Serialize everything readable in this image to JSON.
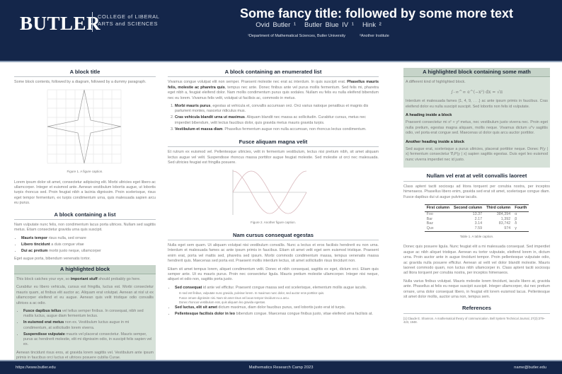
{
  "header": {
    "logo": "BUTLER",
    "college_line1": "COLLEGE of LIBERAL",
    "college_line2": "ARTS and SCIENCES",
    "title": "Some fancy title: followed by some more text",
    "authors": [
      "Ovid Butler ¹",
      "Butler Blue IV ¹",
      "Hink ²"
    ],
    "affiliations": [
      "¹Department of Mathematical Sciences, Butler University",
      "²Another Institute"
    ]
  },
  "left": {
    "block1": {
      "title": "A block title",
      "intro": "Some block contents, followed by a diagram, followed by a dummy paragraph.",
      "caption": "Figure 1. A figure caption.",
      "para": "Lorem ipsum dolor sit amet, consectetur adipiscing elit. Morbi ultricies eget libero ac ullamcorper. Integer et euismod ante. Aenean vestibulum lobortis augue, ut lobortis turpis rhoncus sed. Proin feugiat nibh a lacinia dignissim. Proin scelerisque, risus eget tempor fermentum, ex turpis condimentum urna, quis malesuada sapien arcu eu purus."
    },
    "block2": {
      "title": "A block containing a list",
      "intro": "Nam vulputate nunc felis, non condimentum lacus porta ultrices. Nullam sed sagittis metus. Etiam consectetur gravida urna quis suscipit.",
      "items": [
        {
          "b": "Mauris tempor",
          "t": " risus nulla, sed ornare"
        },
        {
          "b": "Libero tincidunt",
          "t": " a duis congue vitae"
        },
        {
          "b": "Dui ac pretium",
          "t": " morbi justo neque, ullamcorper"
        }
      ],
      "outro": "Eget augue porta, bibendum venenatis tortor."
    },
    "block3": {
      "title": "A highlighted block",
      "p1a": "This block catches your eye, so ",
      "p1b": "important stuff",
      "p1c": " should probably go here.",
      "p2": "Curabitur eu libero vehicula, cursus est fringilla, luctus est. Morbi consectetur mauris quam, at finibus elit auctor ac. Aliquam erat volutpat. Aenean at nisl ut ex ullamcorper eleifend et eu augue. Aenean quis velit tristique odio convallis ultrices a ac odio.",
      "items": [
        {
          "b": "Fusce dapibus tellus",
          "t": " vel tellus semper finibus. In consequat, nibh sed mattis luctus, augue diam fermentum lectus."
        },
        {
          "b": "In euismod erat metus",
          "t": " non ex. Vestibulum luctus augue in mi condimentum, at sollicitudin lorem viverra."
        },
        {
          "b": "Suspendisse vulputate",
          "t": " mauris vel placerat consectetur. Mauris semper, purus ac hendrerit molestie, elit mi dignissim odio, in suscipit felis sapien vel ex."
        }
      ],
      "p3": "Aenean tincidunt risus eros, at gravida lorem sagittis vel. Vestibulum ante ipsum primis in faucibus orci luctus et ultrices posuere cubilia Curae."
    }
  },
  "middle": {
    "block1": {
      "title": "A block containing an enumerated list",
      "p_a": "Vivamus congue volutpat elit non semper. Praesent molestie nec erat ac interdum. In quis suscipit erat. ",
      "p_b": "Phasellus mauris felis, molestie ac pharetra quis",
      "p_c": ", tempus nec ante. Donec finibus ante vel purus mollis fermentum. Sed felis mi, pharetra eget nibh a, feugiat eleifend dolor. Nam mollis condimentum purus quis sodales. Nullam eu felis eu nulla eleifend bibendum nec eu lorem. Vivamus felis velit, volutpat ut facilisis ac, commodo in metus.",
      "items": [
        {
          "b": "Morbi mauris purus",
          "t": ", egestas at vehicula et, convallis accumsan orci. Orci varius natoque penatibus et magnis dis parturient montes, nascetur ridiculus mus."
        },
        {
          "b": "Cras vehicula blandit urna ut maximus",
          "t": ". Aliquam blandit nec massa ac sollicitudin. Curabitur cursus, metus nec imperdiet bibendum, velit lectus faucibus dolor, quis gravida metus mauris gravida turpis."
        },
        {
          "b": "Vestibulum et massa diam",
          "t": ". Phasellus fermentum augue non nulla accumsan, non rhoncus lectus condimentum."
        }
      ]
    },
    "block2": {
      "title": "Fusce aliquam magna velit",
      "para": "Et rutrum ex euismod vel. Pellentesque ultricies, velit in fermentum vestibulum, lectus nisi pretium nibh, sit amet aliquam lectus augue vel velit. Suspendisse rhoncus massa porttitor augue feugiat molestie. Sed molestie ut orci nec malesuada. Sed ultricies feugiat est fringilla posuere.",
      "caption": "Figure 2. Another figure caption."
    },
    "block3": {
      "title": "Nam cursus consequat egestas",
      "p1": "Nulla eget sem quam. Ut aliquam volutpat nisi vestibulum convallis. Nunc a lectus et eros facilisis hendrerit eu non urna. Interdum et malesuada fames ac ante ipsum primis in faucibus. Etiam sit amet velit eget sem euismod tristique. Praesent enim erat, porta vel mattis sed, pharetra sed ipsum. Morbi commodo condimentum massa, tempus venenatis massa hendrerit quis. Maecenas sed porta est. Praesent mollis interdum lectus, sit amet sollicitudin risus tincidunt non.",
      "p2": "Etiam sit amet tempus lorem, aliquet condimentum velit. Donec et nibh consequat, sagittis ex eget, dictum orci. Etiam quis semper ante. Ut eu mauris purus. Proin nec consectetur ligula. Mauris pretium molestie ullamcorper. Integer nisi neque, aliquet et odio non, sagittis porta justo.",
      "items": [
        {
          "b": "Sed consequat",
          "t": " id ante vel efficitur. Praesent congue massa sed est scelerisque, elementum mollis augue iaculis.",
          "sub": [
            "In sed est finibus, vulputate nunc gravida, pulvinar lorem. In maximus nunc dolor, sed auctor eros porttitor quis.",
            "Fusce ornare dignissim nisi. Nam sit amet risus vel lacus tempor tincidunt eu a arcu.",
            "Donec rhoncus vestibulum erat, quis aliquam leo gravida egestas."
          ]
        },
        {
          "b": "Sed luctus, elit sit amet",
          "t": " dictum maximus, diam dolor faucibus purus, sed lobortis justo erat id turpis."
        },
        {
          "b": "Pellentesque facilisis dolor in leo",
          "t": " bibendum congue. Maecenas congue finibus justo, vitae eleifend urna facilisis at."
        }
      ]
    }
  },
  "right": {
    "block1": {
      "title": "A highlighted block containing some math",
      "intro": "A different kind of highlighted block.",
      "equation": "∫₋∞^∞ e^(−x²) dx = √π",
      "p1": "Interdum et malesuada fames {1, 4, 9, . . .} ac ante ipsum primis in faucibus. Cras eleifend dolor eu nulla suscipit suscipit. Sed lobortis non felis id vulputate.",
      "h1": "A heading inside a block",
      "p2": "Praesent consectetur mi x² + y² metus, nec vestibulum justo viverra nec. Proin eget nulla pretium, egestas magna aliquam, mollis neque. Vivamus dictum uᵀv sagittis odio, vel porta erat congue sed. Maecenas ut dolor quis arcu auctor porttitor.",
      "h2": "Another heading inside a block",
      "p3": "Sed augue erat, scelerisque a purus ultricies, placerat porttitor neque. Donec P(y | x) fermentum consectetur ∇ₓP(y | x) sapien sagittis egestas. Duis eget leo euismod nunc viverra imperdiet nec id justo."
    },
    "block2": {
      "title": "Nullam vel erat at velit convallis laoreet",
      "intro": "Class aptent taciti sociosqu ad litora torquent per conubia nostra, per inceptos himenaeos. Phasellus libero enim, gravida sed erat sit amet, scelerisque congue diam. Fusce dapibus dui ut augue pulvinar iaculis.",
      "table": {
        "headers": [
          "First column",
          "Second column",
          "Third column",
          "Fourth"
        ],
        "rows": [
          [
            "Foo",
            "13.37",
            "384,394",
            "α"
          ],
          [
            "Bar",
            "2.17",
            "1,392",
            "β"
          ],
          [
            "Baz",
            "3.14",
            "83,742",
            "δ"
          ],
          [
            "Qux",
            "7.59",
            "974",
            "γ"
          ]
        ]
      },
      "caption": "Table 1. A table caption.",
      "p1": "Donec quis posuere ligula. Nunc feugiat elit a mi malesuada consequat. Sed imperdiet augue ac nibh aliquet tristique. Aenean eu tortor vulputate, eleifend lorem in, dictum urna. Proin auctor ante in augue tincidunt tempor. Proin pellentesque vulputate odio, ac gravida nulla posuere efficitur. Aenean at velit vel dolor blandit molestie. Mauris laoreet commodo quam, non luctus nibh ullamcorper in. Class aptent taciti sociosqu ad litora torquent per conubia nostra, per inceptos himenaeos.",
      "p2": "Nulla varius finibus volutpat. Mauris molestie lorem tincidunt, iaculis libero at, gravida ante. Phasellus at felis eu neque suscipit suscipit. Integer ullamcorper, dui nec pretium ornare, urna dolor consequat libero, in feugiat elit lorem euismod lacus. Pellentesque sit amet dolor mollis, auctor urna non, tempus sem."
    },
    "references": {
      "title": "References",
      "items": [
        "[1]  Claude E. Shannon. A mathematical theory of communication. Bell System Technical Journal, 27(3):379–423, 1948."
      ]
    }
  },
  "footer": {
    "left": "https://www.butler.edu",
    "center": "Mathematics Research Camp 2023",
    "right": "name@butler.edu"
  }
}
